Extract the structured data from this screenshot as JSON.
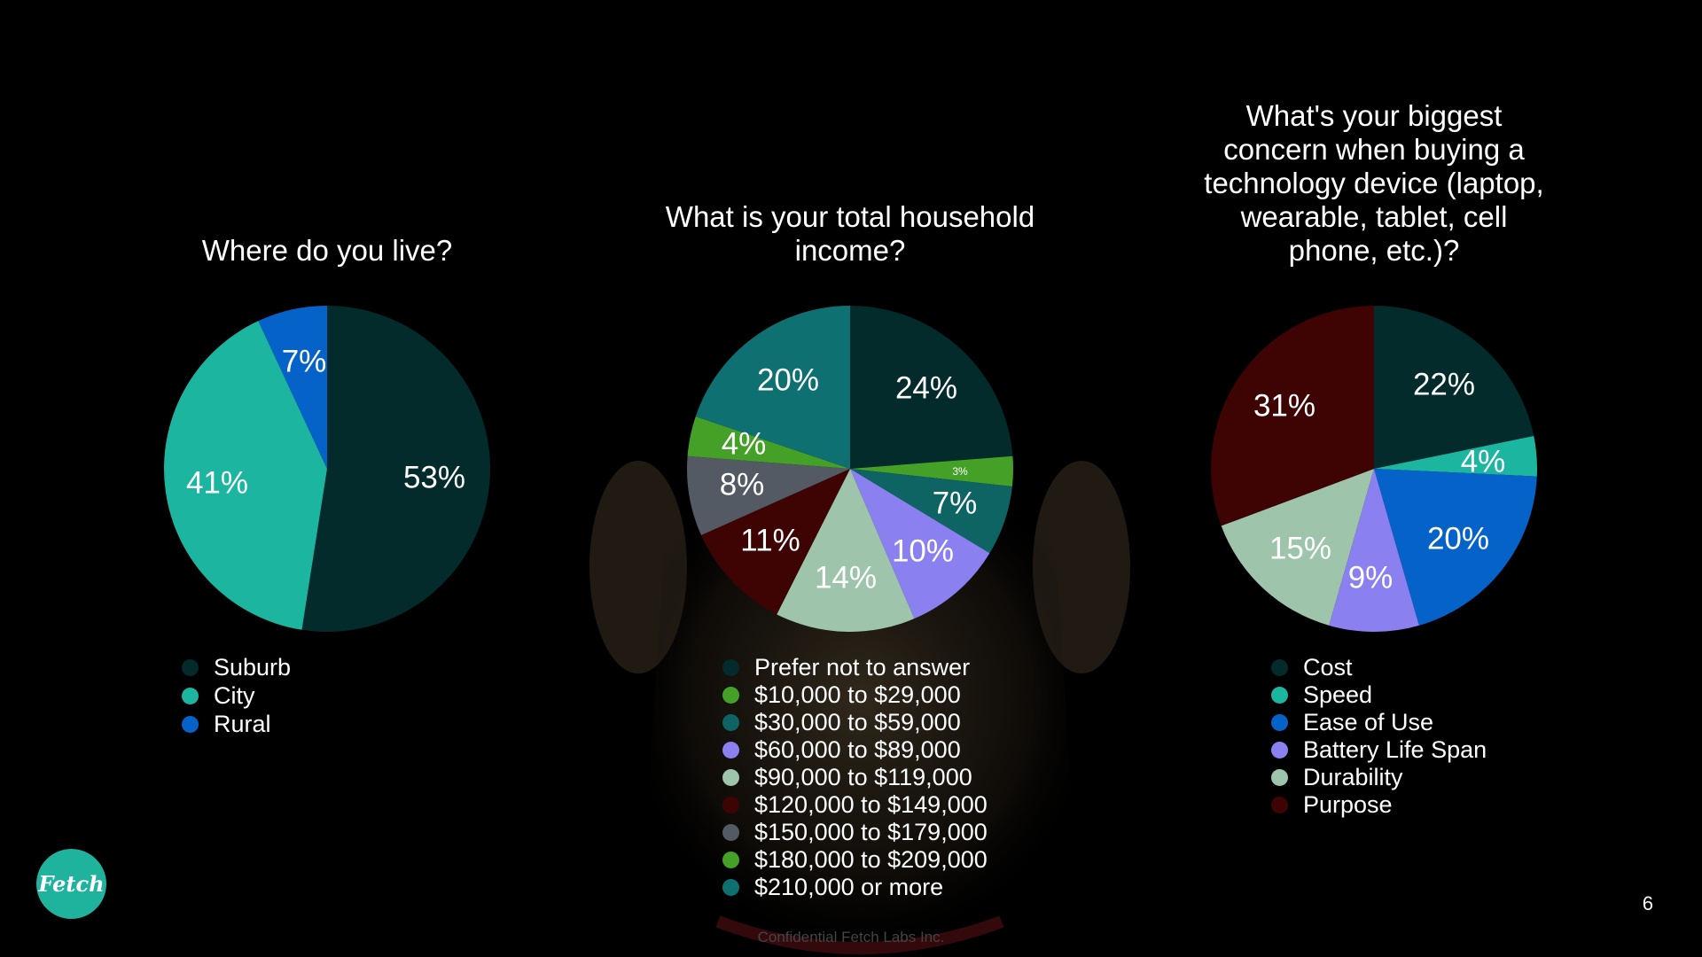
{
  "colors": {
    "dark_teal": "#032b2b",
    "teal": "#1cb5a0",
    "blue": "#0562c8",
    "green": "#45a028",
    "mid_teal": "#0e7070",
    "lavender": "#8a80f0",
    "sage": "#9ec4ab",
    "maroon": "#3e0404",
    "gray": "#535a63"
  },
  "chart_data": [
    {
      "type": "pie",
      "title": "Where do you live?",
      "categories": [
        "Suburb",
        "City",
        "Rural"
      ],
      "values": [
        53,
        41,
        7
      ],
      "labels": [
        "53%",
        "41%",
        "7%"
      ],
      "colors": [
        "#032b2b",
        "#1cb5a0",
        "#0562c8"
      ],
      "legend": "bottom"
    },
    {
      "type": "pie",
      "title": "What is your total household income?",
      "categories": [
        "Prefer not to answer",
        "$10,000 to $29,000",
        "$30,000 to $59,000",
        "$60,000 to $89,000",
        "$90,000 to $119,000",
        "$120,000 to $149,000",
        "$150,000 to $179,000",
        "$180,000 to $209,000",
        "$210,000 or more"
      ],
      "values": [
        24,
        3,
        7,
        10,
        14,
        11,
        8,
        4,
        20
      ],
      "labels": [
        "24%",
        "3%",
        "7%",
        "10%",
        "14%",
        "11%",
        "8%",
        "4%",
        "20%"
      ],
      "colors": [
        "#032b2b",
        "#45a028",
        "#0e6363",
        "#8a80f0",
        "#9ec4ab",
        "#3e0404",
        "#535a63",
        "#45a028",
        "#0e7070"
      ],
      "legend": "bottom"
    },
    {
      "type": "pie",
      "title": "What's your biggest concern when buying a technology device (laptop, wearable, tablet, cell phone, etc.)?",
      "categories": [
        "Cost",
        "Speed",
        "Ease of Use",
        "Battery Life Span",
        "Durability",
        "Purpose"
      ],
      "values": [
        22,
        4,
        20,
        9,
        15,
        31
      ],
      "labels": [
        "22%",
        "4%",
        "20%",
        "9%",
        "15%",
        "31%"
      ],
      "colors": [
        "#032b2b",
        "#1cb5a0",
        "#0562c8",
        "#8a80f0",
        "#9ec4ab",
        "#3e0404"
      ],
      "legend": "bottom"
    }
  ],
  "logo": {
    "text": "Fetch"
  },
  "page_number": "6",
  "footer": "Confidential Fetch Labs Inc."
}
